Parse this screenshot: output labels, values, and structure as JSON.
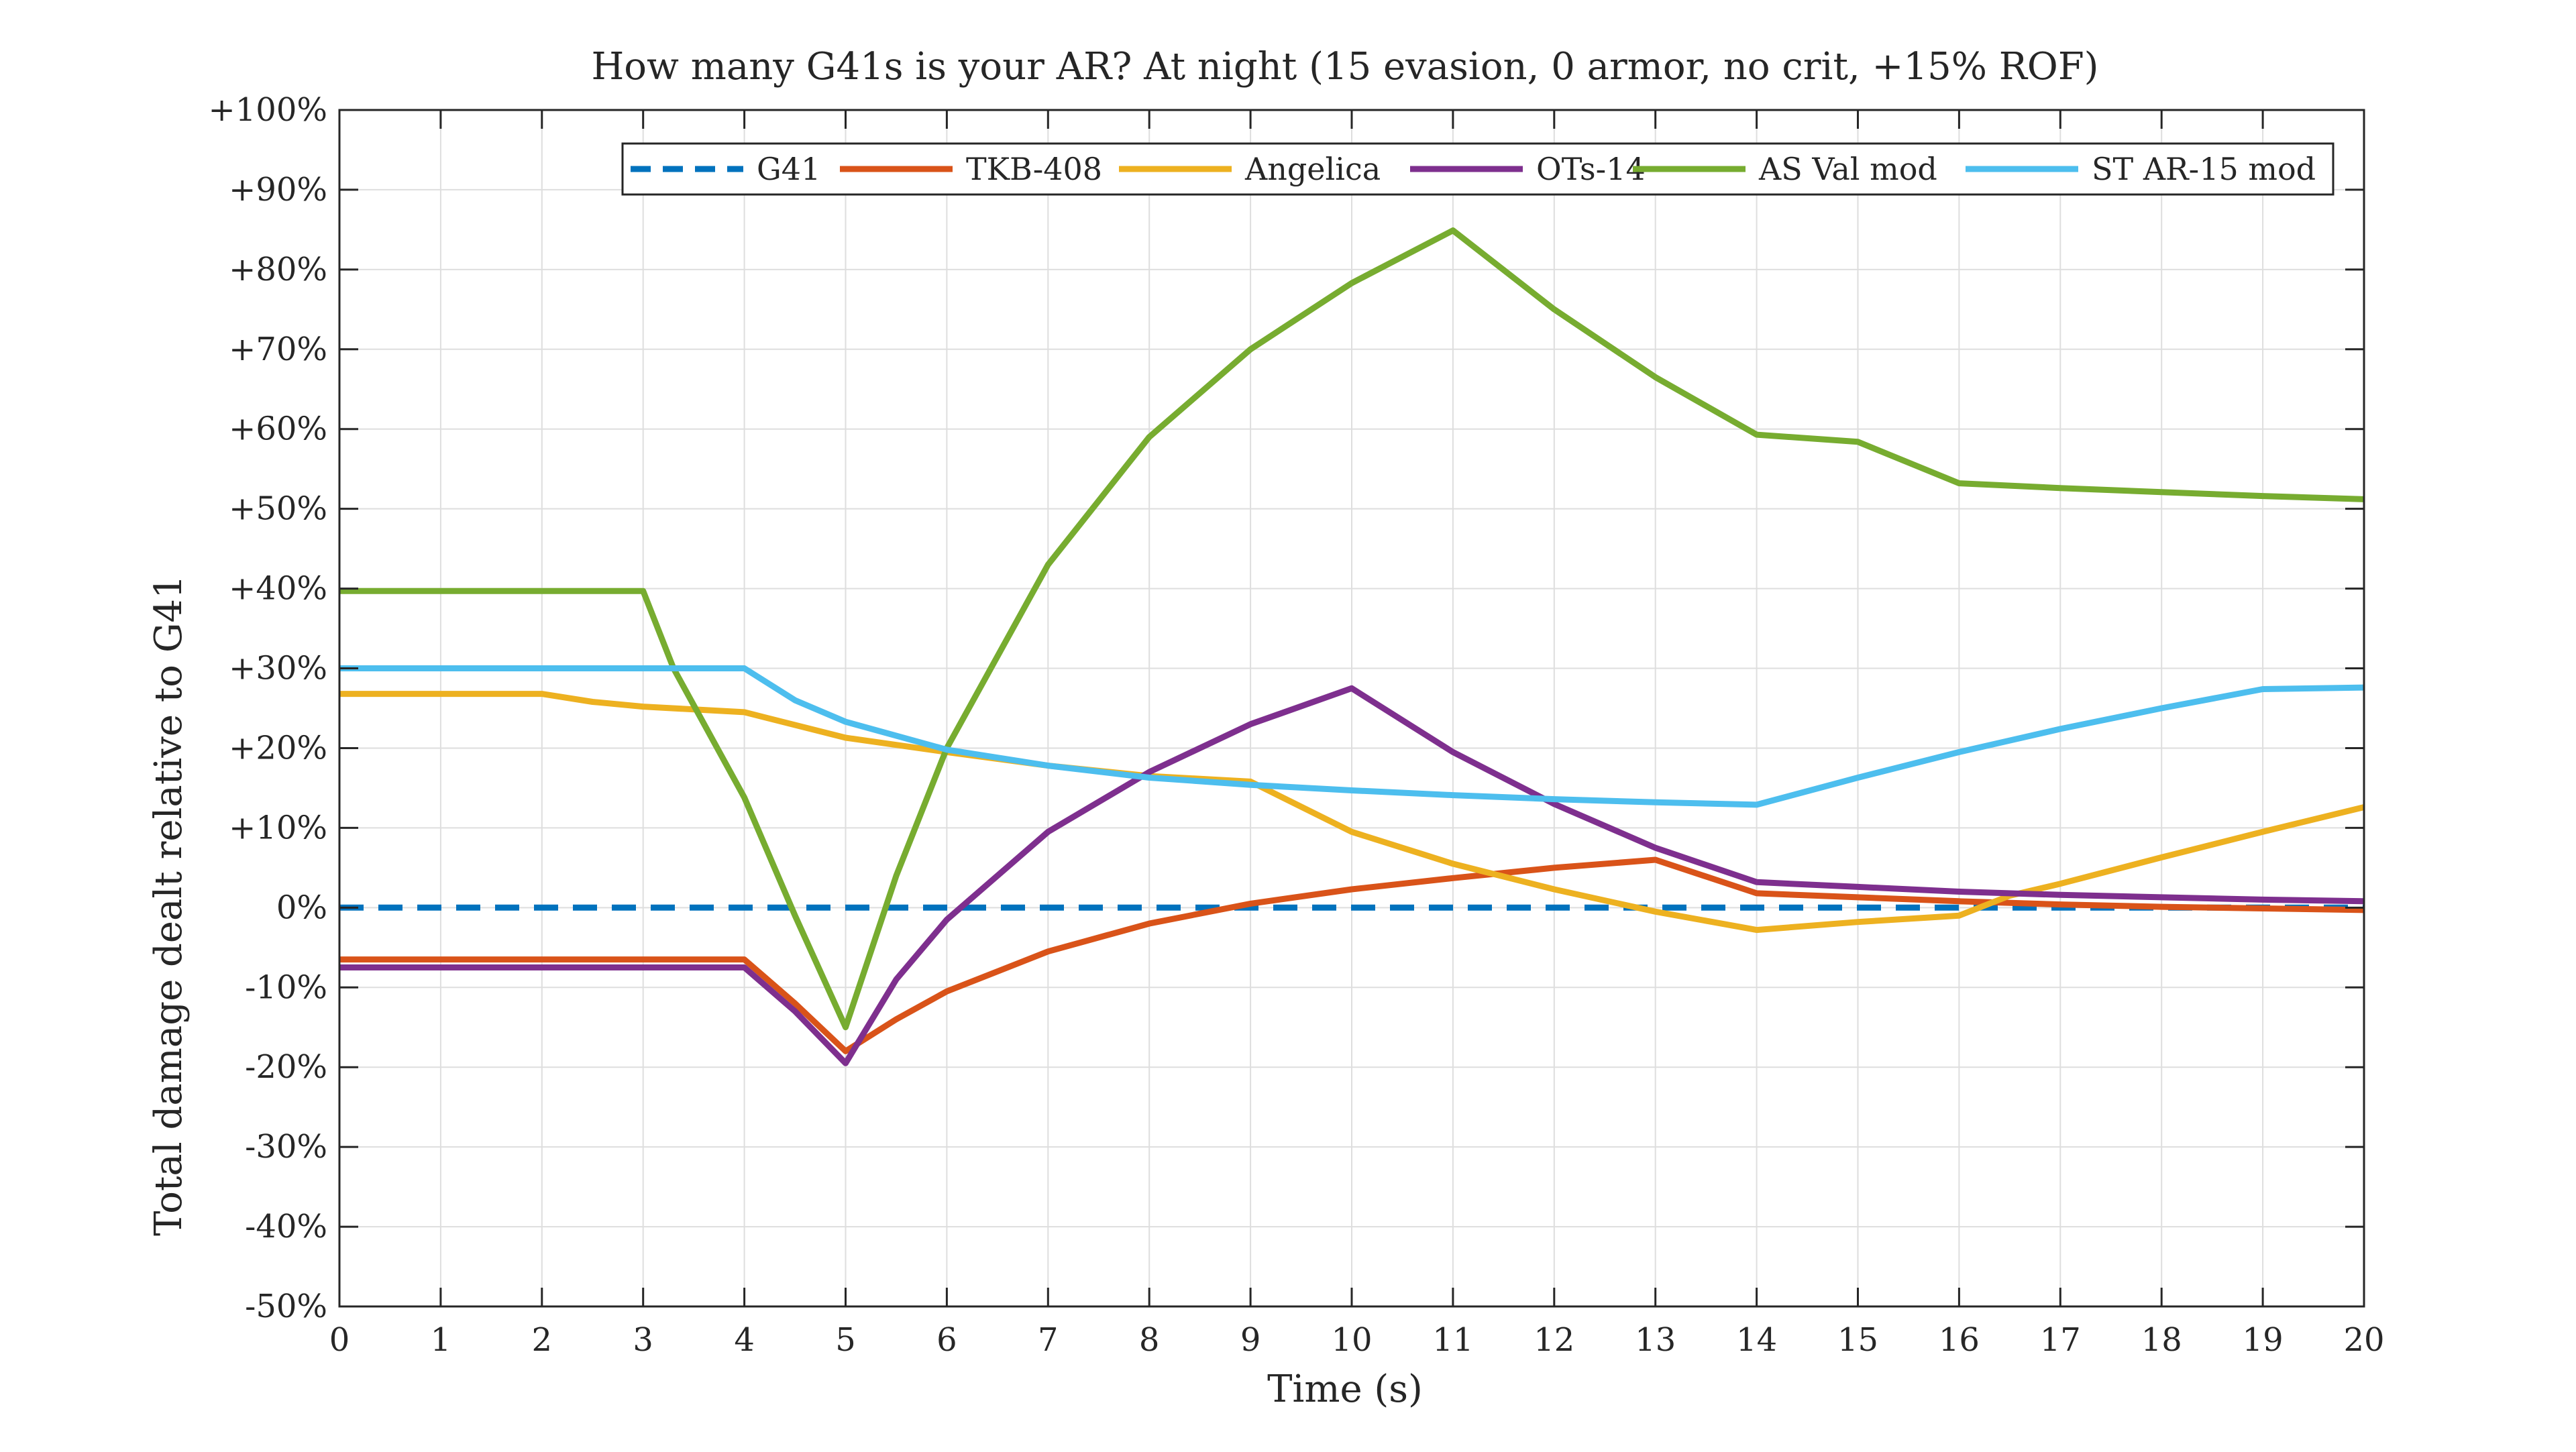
{
  "chart_data": {
    "type": "line",
    "title": "How many G41s is your AR? At night (15 evasion, 0 armor, no crit, +15% ROF)",
    "xlabel": "Time (s)",
    "ylabel": "Total damage dealt relative to G41",
    "xlim": [
      0,
      20
    ],
    "ylim": [
      -50,
      100
    ],
    "x_ticks": [
      0,
      1,
      2,
      3,
      4,
      5,
      6,
      7,
      8,
      9,
      10,
      11,
      12,
      13,
      14,
      15,
      16,
      17,
      18,
      19,
      20
    ],
    "y_ticks": [
      -50,
      -40,
      -30,
      -20,
      -10,
      0,
      10,
      20,
      30,
      40,
      50,
      60,
      70,
      80,
      90,
      100
    ],
    "y_tick_labels": [
      "-50%",
      "-40%",
      "-30%",
      "-20%",
      "-10%",
      "0%",
      "+10%",
      "+20%",
      "+30%",
      "+40%",
      "+50%",
      "+60%",
      "+70%",
      "+80%",
      "+90%",
      "+100%"
    ],
    "x_tick_labels": [
      "0",
      "1",
      "2",
      "3",
      "4",
      "5",
      "6",
      "7",
      "8",
      "9",
      "10",
      "11",
      "12",
      "13",
      "14",
      "15",
      "16",
      "17",
      "18",
      "19",
      "20"
    ],
    "grid": true,
    "legend_position": "top-right",
    "series": [
      {
        "name": "G41",
        "color": "#0072BD",
        "dashed": true,
        "points": [
          [
            0,
            0
          ],
          [
            20,
            0
          ]
        ]
      },
      {
        "name": "TKB-408",
        "color": "#D95319",
        "dashed": false,
        "points": [
          [
            0,
            -6.5
          ],
          [
            4,
            -6.5
          ],
          [
            4.5,
            -12
          ],
          [
            5,
            -18
          ],
          [
            5.5,
            -14
          ],
          [
            6,
            -10.5
          ],
          [
            7,
            -5.5
          ],
          [
            8,
            -2
          ],
          [
            9,
            0.5
          ],
          [
            10,
            2.3
          ],
          [
            11,
            3.7
          ],
          [
            12,
            5
          ],
          [
            13,
            6
          ],
          [
            14,
            1.8
          ],
          [
            15,
            1.3
          ],
          [
            16,
            0.8
          ],
          [
            17,
            0.4
          ],
          [
            18,
            0.1
          ],
          [
            19,
            -0.1
          ],
          [
            20,
            -0.3
          ]
        ]
      },
      {
        "name": "Angelica",
        "color": "#EDB120",
        "dashed": false,
        "points": [
          [
            0,
            26.8
          ],
          [
            1,
            26.8
          ],
          [
            2,
            26.8
          ],
          [
            2.5,
            25.8
          ],
          [
            3,
            25.2
          ],
          [
            4,
            24.5
          ],
          [
            5,
            21.3
          ],
          [
            6,
            19.5
          ],
          [
            7,
            17.8
          ],
          [
            8,
            16.5
          ],
          [
            9,
            15.8
          ],
          [
            10,
            9.5
          ],
          [
            11,
            5.5
          ],
          [
            12,
            2.3
          ],
          [
            13,
            -0.5
          ],
          [
            14,
            -2.8
          ],
          [
            15,
            -1.8
          ],
          [
            16,
            -1
          ],
          [
            16.5,
            1.5
          ],
          [
            17,
            3
          ],
          [
            18,
            6.3
          ],
          [
            19,
            9.5
          ],
          [
            20,
            12.6
          ]
        ]
      },
      {
        "name": "OTs-14",
        "color": "#7E2F8E",
        "dashed": false,
        "points": [
          [
            0,
            -7.5
          ],
          [
            4,
            -7.5
          ],
          [
            4.5,
            -13
          ],
          [
            5,
            -19.5
          ],
          [
            5.5,
            -9
          ],
          [
            6,
            -1.5
          ],
          [
            7,
            9.5
          ],
          [
            8,
            17
          ],
          [
            9,
            23
          ],
          [
            10,
            27.5
          ],
          [
            11,
            19.5
          ],
          [
            12,
            13
          ],
          [
            13,
            7.5
          ],
          [
            14,
            3.2
          ],
          [
            15,
            2.6
          ],
          [
            16,
            2
          ],
          [
            17,
            1.6
          ],
          [
            18,
            1.3
          ],
          [
            19,
            1
          ],
          [
            20,
            0.8
          ]
        ]
      },
      {
        "name": "AS Val mod",
        "color": "#77AC30",
        "dashed": false,
        "points": [
          [
            0,
            39.7
          ],
          [
            3,
            39.7
          ],
          [
            3.3,
            30
          ],
          [
            4,
            13.8
          ],
          [
            4.5,
            -1
          ],
          [
            5,
            -15
          ],
          [
            5.5,
            4
          ],
          [
            6,
            20
          ],
          [
            7,
            43
          ],
          [
            8,
            59
          ],
          [
            9,
            70
          ],
          [
            10,
            78.3
          ],
          [
            11,
            84.9
          ],
          [
            12,
            75
          ],
          [
            13,
            66.5
          ],
          [
            14,
            59.3
          ],
          [
            15,
            58.4
          ],
          [
            16,
            53.2
          ],
          [
            17,
            52.6
          ],
          [
            18,
            52.1
          ],
          [
            19,
            51.6
          ],
          [
            20,
            51.2
          ]
        ]
      },
      {
        "name": "ST AR-15 mod",
        "color": "#4DBEEE",
        "dashed": false,
        "points": [
          [
            0,
            30
          ],
          [
            4,
            30
          ],
          [
            4.5,
            26
          ],
          [
            5,
            23.3
          ],
          [
            6,
            19.8
          ],
          [
            7,
            17.8
          ],
          [
            8,
            16.3
          ],
          [
            9,
            15.4
          ],
          [
            10,
            14.7
          ],
          [
            11,
            14.1
          ],
          [
            12,
            13.6
          ],
          [
            13,
            13.2
          ],
          [
            14,
            12.9
          ],
          [
            15,
            16.3
          ],
          [
            16,
            19.5
          ],
          [
            17,
            22.4
          ],
          [
            18,
            25
          ],
          [
            19,
            27.4
          ],
          [
            20,
            27.6
          ]
        ]
      }
    ]
  }
}
